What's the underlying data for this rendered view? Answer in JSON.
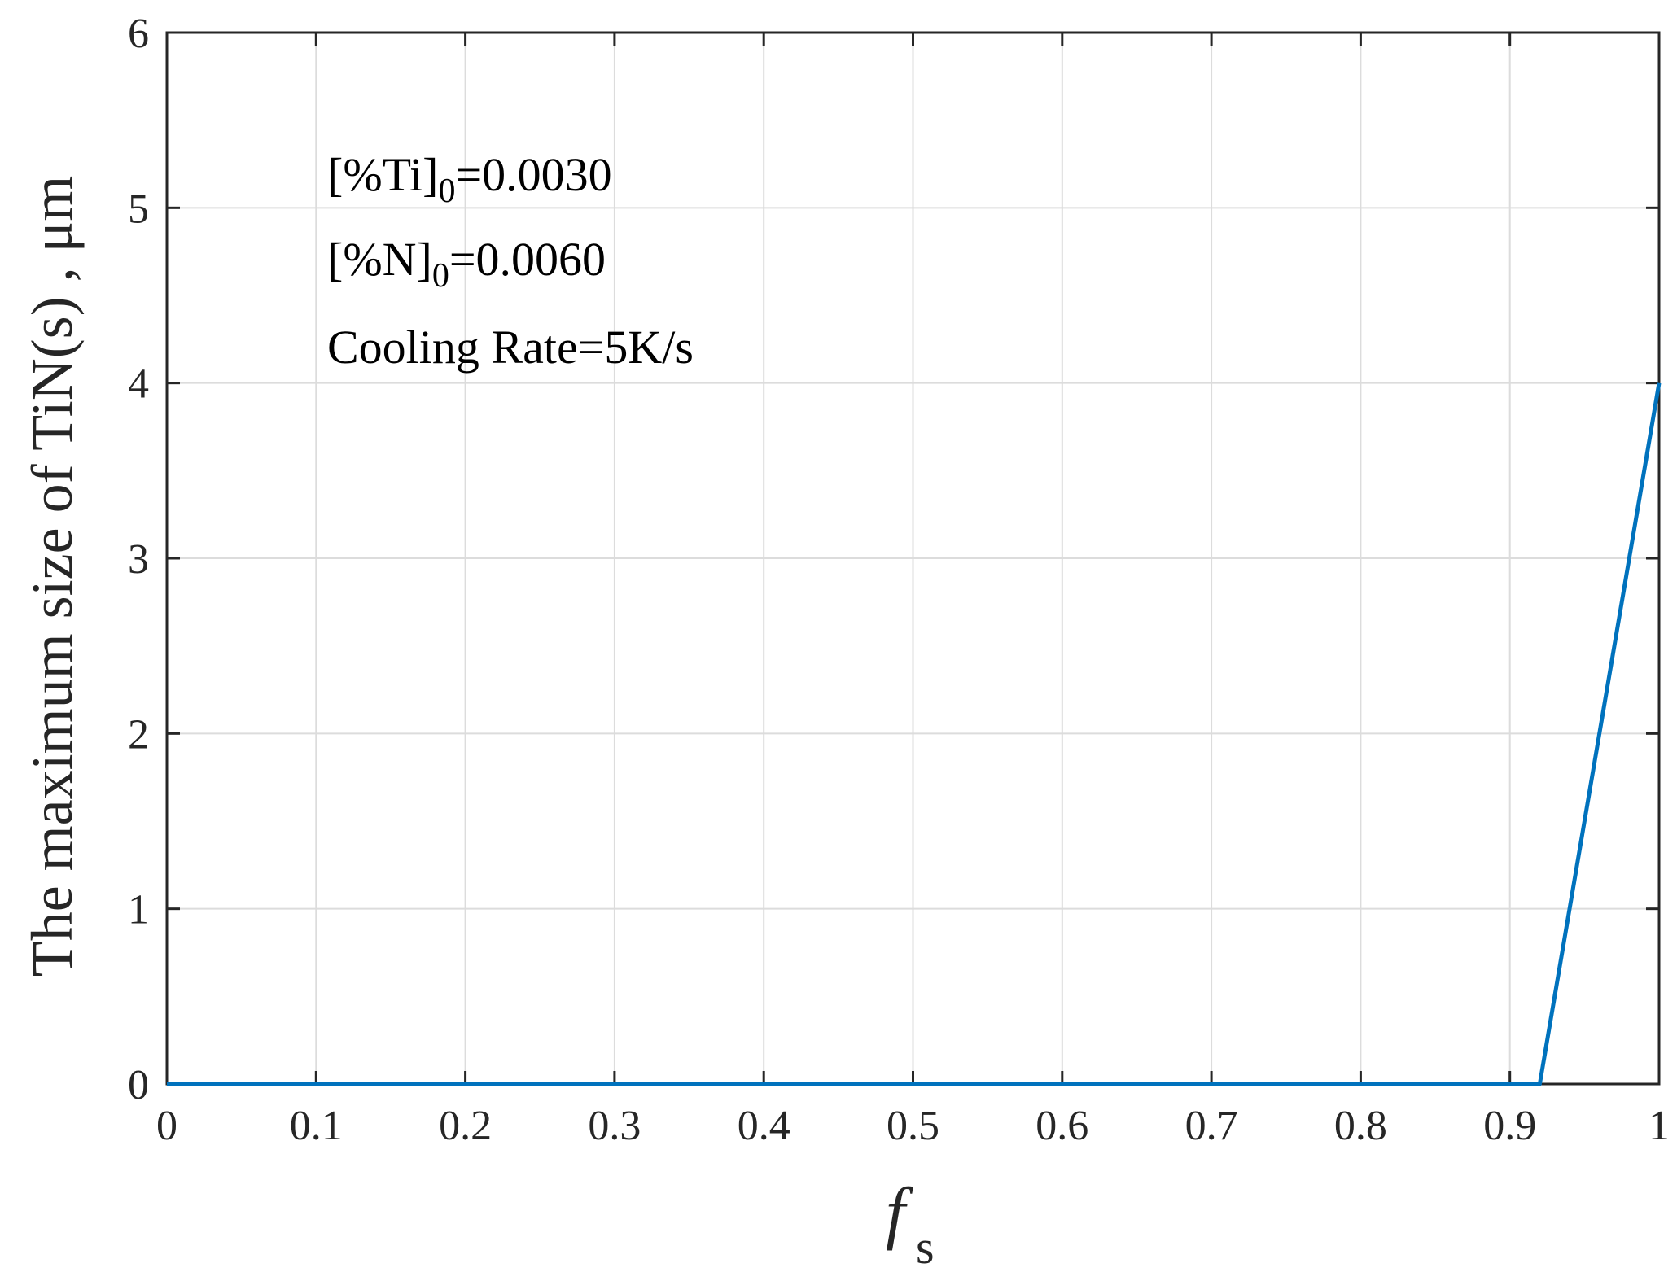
{
  "chart_data": {
    "type": "line",
    "xlabel": {
      "main": "f",
      "sub": "s"
    },
    "ylabel": "The maximum size of TiN(s) , μm",
    "xlim": [
      0,
      1
    ],
    "ylim": [
      0,
      6
    ],
    "xticks": [
      0,
      0.1,
      0.2,
      0.3,
      0.4,
      0.5,
      0.6,
      0.7,
      0.8,
      0.9,
      1
    ],
    "xtick_labels": [
      "0",
      "0.1",
      "0.2",
      "0.3",
      "0.4",
      "0.5",
      "0.6",
      "0.7",
      "0.8",
      "0.9",
      "1"
    ],
    "yticks": [
      0,
      1,
      2,
      3,
      4,
      5,
      6
    ],
    "ytick_labels": [
      "0",
      "1",
      "2",
      "3",
      "4",
      "5",
      "6"
    ],
    "grid": true,
    "series": [
      {
        "color": "#0072BD",
        "x": [
          0,
          0.92,
          1.0
        ],
        "y": [
          0,
          0,
          4.0
        ]
      }
    ],
    "annotations": [
      {
        "pre": "[%Ti]",
        "sub": "0",
        "post": "=0.0030"
      },
      {
        "pre": "[%N]",
        "sub": "0",
        "post": "=0.0060"
      },
      {
        "pre": "Cooling Rate=5K/s",
        "sub": "",
        "post": ""
      }
    ]
  }
}
